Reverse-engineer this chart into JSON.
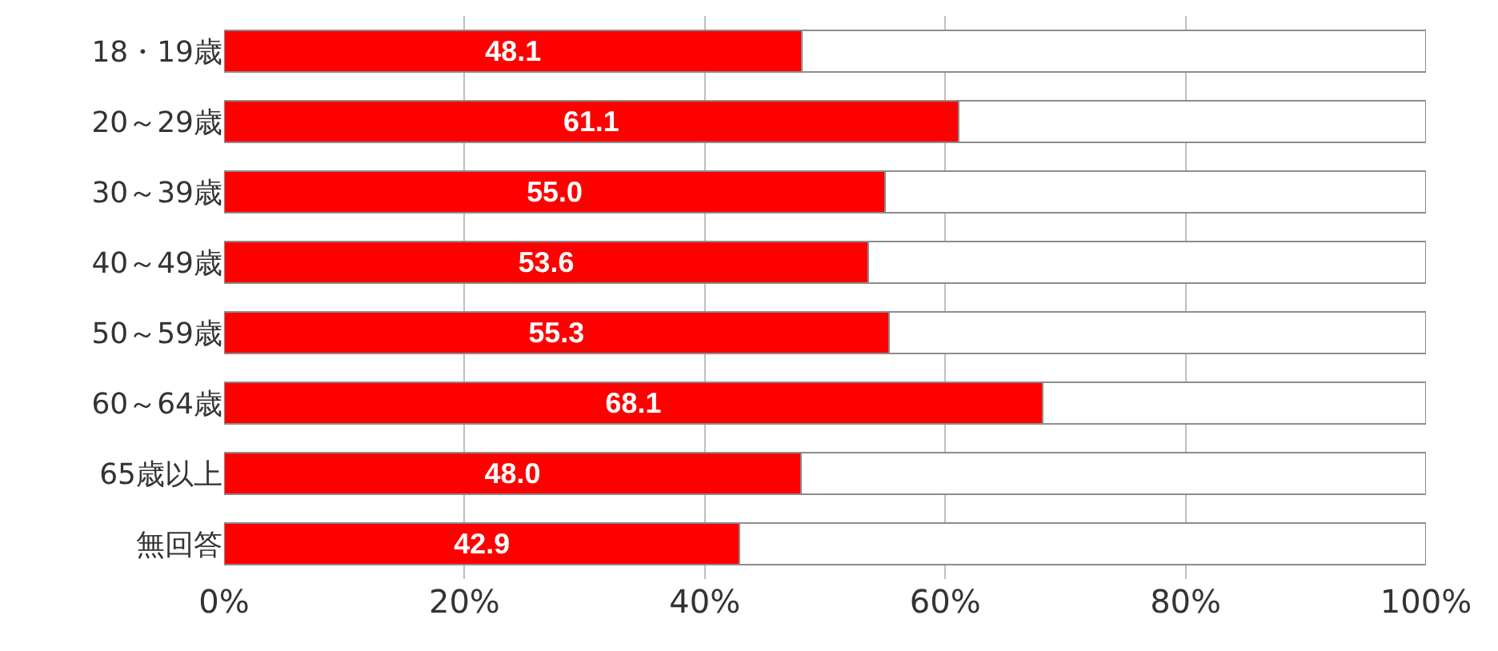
{
  "chart_data": {
    "type": "bar",
    "orientation": "horizontal",
    "stacked": true,
    "categories": [
      "18・19歳",
      "20～29歳",
      "30～39歳",
      "40～49歳",
      "50～59歳",
      "60～64歳",
      "65歳以上",
      "無回答"
    ],
    "series": [
      {
        "color": "#ff0000",
        "values": [
          48.1,
          61.1,
          55.0,
          53.6,
          55.3,
          68.1,
          48.0,
          42.9
        ],
        "value_labels": [
          "48.1",
          "61.1",
          "55.0",
          "53.6",
          "55.3",
          "68.1",
          "48.0",
          "42.9"
        ]
      },
      {
        "color": "#ffffff",
        "values": [
          51.9,
          38.9,
          45.0,
          46.4,
          44.7,
          31.9,
          52.0,
          57.1
        ]
      }
    ],
    "xlim": [
      0,
      100
    ],
    "xticks": [
      {
        "value": 0,
        "label": "0%"
      },
      {
        "value": 20,
        "label": "20%"
      },
      {
        "value": 40,
        "label": "40%"
      },
      {
        "value": 60,
        "label": "60%"
      },
      {
        "value": 80,
        "label": "80%"
      },
      {
        "value": 100,
        "label": "100%"
      }
    ],
    "grid": "x"
  }
}
